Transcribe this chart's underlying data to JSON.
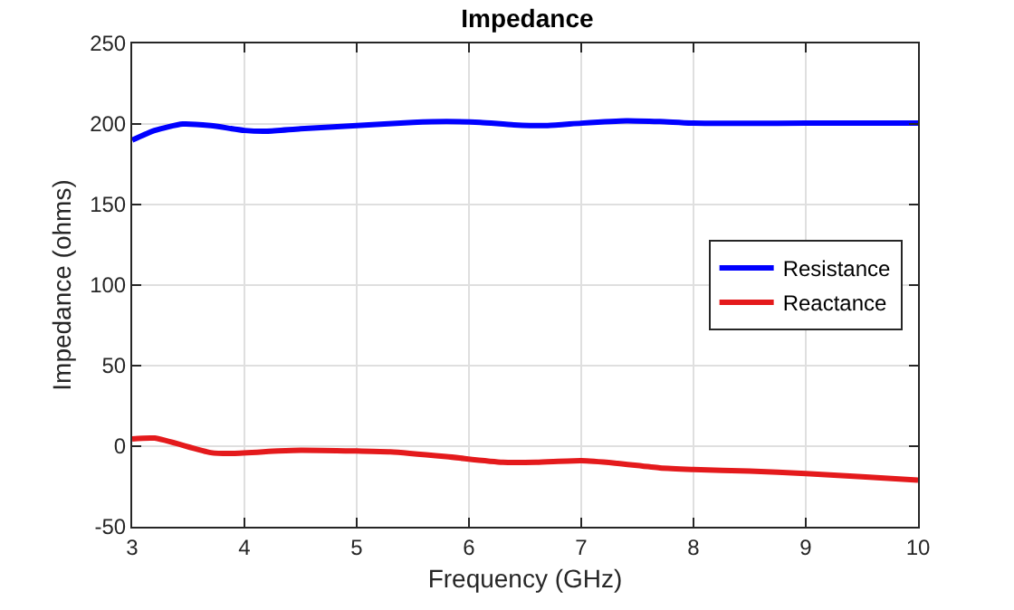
{
  "chart_data": {
    "type": "line",
    "title": "Impedance",
    "xlabel": "Frequency (GHz)",
    "ylabel": "Impedance (ohms)",
    "x": [
      3,
      3.2,
      3.45,
      3.7,
      4.0,
      4.2,
      4.5,
      5,
      5.5,
      5.8,
      6.1,
      6.4,
      6.7,
      7,
      7.4,
      7.7,
      8,
      9,
      10
    ],
    "series": [
      {
        "name": "Resistance",
        "color": "#0000ff",
        "values": [
          190,
          196,
          200,
          199,
          196,
          195.5,
          197,
          199,
          201,
          201.5,
          201,
          199.5,
          199,
          200.5,
          202,
          201.5,
          200.5,
          200.5,
          200.5
        ]
      },
      {
        "name": "Reactance",
        "color": "#e41a1c",
        "x": [
          3,
          3.2,
          3.7,
          3.9,
          4.3,
          4.5,
          5,
          5.3,
          5.8,
          6.3,
          6.6,
          7,
          7.3,
          7.7,
          8,
          8.5,
          9,
          9.5,
          10
        ],
        "values": [
          4.5,
          5,
          -4,
          -4.5,
          -3,
          -2.5,
          -3,
          -3.5,
          -6.5,
          -10,
          -10,
          -9,
          -10.5,
          -13.5,
          -14.5,
          -15.5,
          -17,
          -19,
          -21
        ]
      }
    ],
    "xlim": [
      3,
      10
    ],
    "xticks": [
      3,
      4,
      5,
      6,
      7,
      8,
      9,
      10
    ],
    "ylim": [
      -50,
      250
    ],
    "yticks": [
      -50,
      0,
      50,
      100,
      150,
      200,
      250
    ],
    "grid": true,
    "legend": "right",
    "marker": "none",
    "line_style": "solid"
  }
}
